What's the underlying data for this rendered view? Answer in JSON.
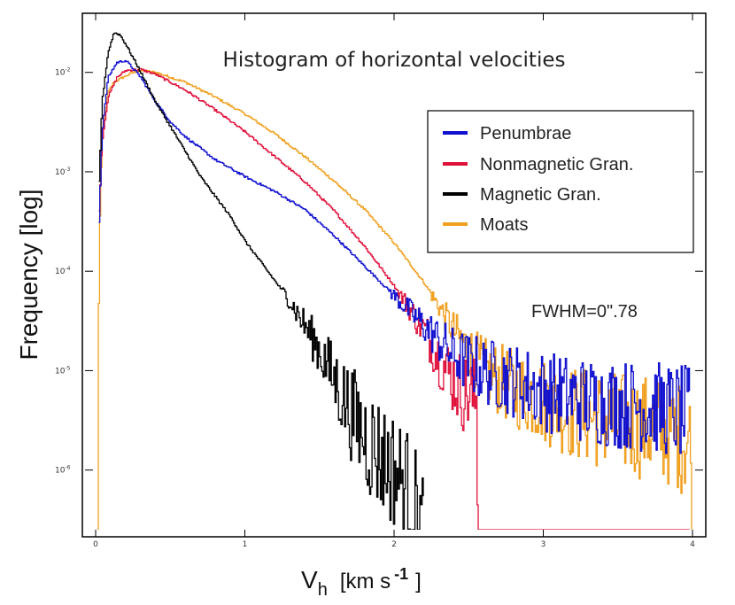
{
  "chart_data": {
    "type": "line",
    "title": "Histogram of horizontal velocities",
    "xlabel_main": "V",
    "xlabel_sub": "h",
    "xlabel_units": "[km s",
    "xlabel_exp": "-1",
    "xlabel_close": "]",
    "ylabel": "Frequency [log]",
    "xlim": [
      0,
      4
    ],
    "ylim": [
      -6.6,
      -1.45
    ],
    "y_scale": "log10",
    "x_ticks": [
      {
        "value": 0,
        "label": "0"
      },
      {
        "value": 1,
        "label": "1"
      },
      {
        "value": 2,
        "label": "2"
      },
      {
        "value": 3,
        "label": "3"
      },
      {
        "value": 4,
        "label": "4"
      }
    ],
    "y_ticks": [
      {
        "value": -2,
        "base": "10",
        "exp": "-2"
      },
      {
        "value": -3,
        "base": "10",
        "exp": "-3"
      },
      {
        "value": -4,
        "base": "10",
        "exp": "-4"
      },
      {
        "value": -5,
        "base": "10",
        "exp": "-5"
      },
      {
        "value": -6,
        "base": "10",
        "exp": "-6"
      }
    ],
    "annotation": "FWHM=0\".78",
    "legend_position": "top-right",
    "series": [
      {
        "name": "Penumbrae",
        "color": "#1010d0",
        "x": [
          0.02,
          0.04,
          0.08,
          0.14,
          0.2,
          0.3,
          0.4,
          0.5,
          0.6,
          0.8,
          1.0,
          1.2,
          1.4,
          1.6,
          1.8,
          2.0,
          2.2,
          2.4,
          2.6,
          2.8,
          3.0,
          3.2,
          3.4,
          3.6,
          3.8,
          3.98
        ],
        "y": [
          -3.5,
          -2.6,
          -2.05,
          -1.9,
          -1.88,
          -2.05,
          -2.3,
          -2.5,
          -2.65,
          -2.88,
          -3.05,
          -3.2,
          -3.38,
          -3.65,
          -3.95,
          -4.25,
          -4.55,
          -4.85,
          -5.0,
          -5.1,
          -5.2,
          -5.28,
          -5.32,
          -5.35,
          -5.38,
          -5.45
        ]
      },
      {
        "name": "Nonmagnetic Gran.",
        "color": "#e0103a",
        "x": [
          0.02,
          0.04,
          0.08,
          0.14,
          0.2,
          0.3,
          0.4,
          0.5,
          0.6,
          0.8,
          1.0,
          1.2,
          1.4,
          1.6,
          1.8,
          2.0,
          2.2,
          2.35,
          2.45,
          2.55,
          2.56,
          2.6,
          3.98
        ],
        "y": [
          -3.4,
          -2.7,
          -2.25,
          -2.05,
          -1.98,
          -1.97,
          -2.02,
          -2.1,
          -2.18,
          -2.38,
          -2.6,
          -2.85,
          -3.1,
          -3.4,
          -3.75,
          -4.15,
          -4.6,
          -5.0,
          -5.2,
          -5.3,
          -6.6,
          -6.6,
          -6.6
        ]
      },
      {
        "name": "Magnetic Gran.",
        "color": "#000000",
        "x": [
          0.02,
          0.04,
          0.08,
          0.12,
          0.16,
          0.2,
          0.3,
          0.4,
          0.5,
          0.6,
          0.7,
          0.8,
          0.9,
          1.0,
          1.1,
          1.2,
          1.3,
          1.4,
          1.5,
          1.6,
          1.7,
          1.8,
          1.9,
          2.0,
          2.1,
          2.15,
          2.2
        ],
        "y": [
          -3.1,
          -2.3,
          -1.8,
          -1.6,
          -1.62,
          -1.72,
          -2.0,
          -2.3,
          -2.55,
          -2.8,
          -3.05,
          -3.25,
          -3.45,
          -3.7,
          -3.9,
          -4.1,
          -4.3,
          -4.55,
          -4.8,
          -5.1,
          -5.4,
          -5.65,
          -5.85,
          -6.0,
          -6.2,
          -6.4,
          -6.6
        ]
      },
      {
        "name": "Moats",
        "color": "#f0a020",
        "x": [
          0.01,
          0.02,
          0.04,
          0.08,
          0.12,
          0.18,
          0.25,
          0.3,
          0.4,
          0.5,
          0.6,
          0.8,
          1.0,
          1.2,
          1.4,
          1.6,
          1.8,
          2.0,
          2.2,
          2.4,
          2.6,
          2.8,
          3.0,
          3.2,
          3.4,
          3.6,
          3.8,
          3.98,
          4.0
        ],
        "y": [
          -6.6,
          -3.8,
          -2.6,
          -2.2,
          -2.1,
          -2.05,
          -2.0,
          -1.98,
          -2.0,
          -2.05,
          -2.1,
          -2.25,
          -2.42,
          -2.62,
          -2.85,
          -3.1,
          -3.38,
          -3.72,
          -4.12,
          -4.6,
          -5.0,
          -5.18,
          -5.3,
          -5.42,
          -5.5,
          -5.55,
          -5.6,
          -5.7,
          -6.6
        ]
      }
    ]
  }
}
